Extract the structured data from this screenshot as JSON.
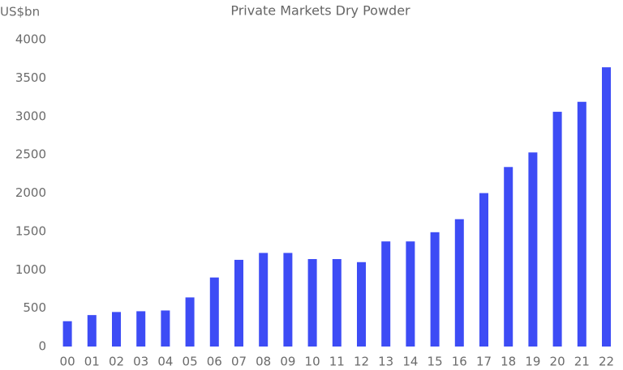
{
  "chart_data": {
    "type": "bar",
    "title": "Private Markets Dry Powder",
    "ylabel": "US$bn",
    "categories": [
      "00",
      "01",
      "02",
      "03",
      "04",
      "05",
      "06",
      "07",
      "08",
      "09",
      "10",
      "11",
      "12",
      "13",
      "14",
      "15",
      "16",
      "17",
      "18",
      "19",
      "20",
      "21",
      "22"
    ],
    "values": [
      330,
      410,
      450,
      460,
      470,
      640,
      900,
      1130,
      1220,
      1220,
      1140,
      1140,
      1100,
      1370,
      1370,
      1490,
      1660,
      2000,
      2340,
      2530,
      3060,
      3190,
      3640
    ],
    "color": "#3d4cf5",
    "ylim": [
      0,
      4000
    ],
    "yticks": [
      0,
      500,
      1000,
      1500,
      2000,
      2500,
      3000,
      3500,
      4000
    ],
    "grid": false
  }
}
